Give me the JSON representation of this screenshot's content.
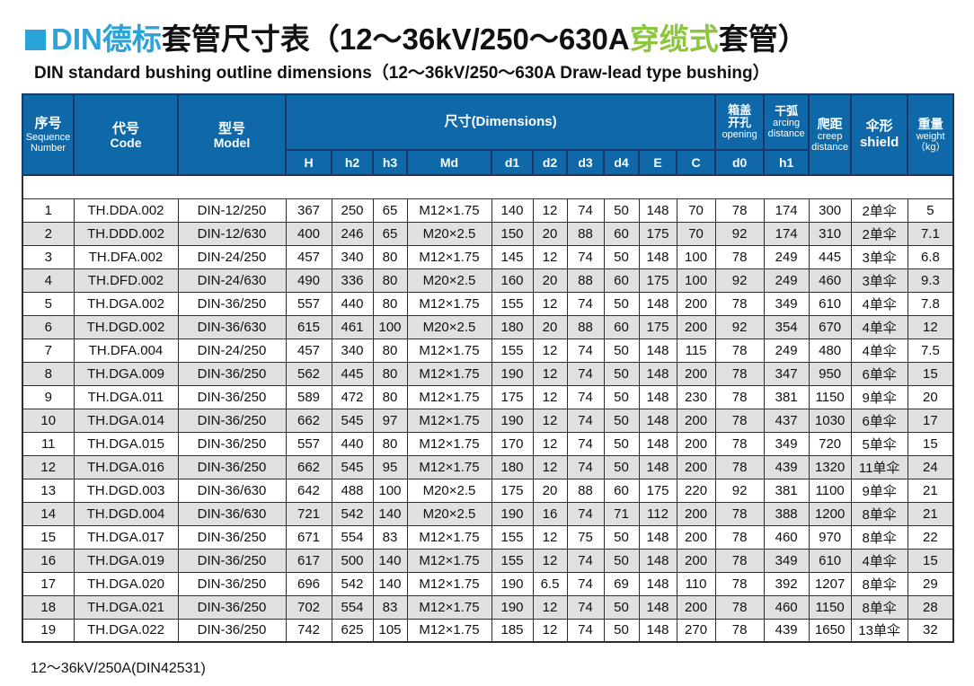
{
  "colors": {
    "header_blue": "#0f69a8",
    "header_navy": "#1b3768",
    "title_blue": "#2aa3d8",
    "title_green": "#8cc63e",
    "row_alt_gray": "#e0e0e0"
  },
  "title": {
    "zh_blue": "DIN德标",
    "zh_black_1": "套管尺寸表（12～36kV/250～630A",
    "zh_green": "穿缆式",
    "zh_black_2": "套管）",
    "en": "DIN standard bushing outline dimensions（12～36kV/250～630A Draw-lead type bushing）"
  },
  "table": {
    "headers": {
      "sequence": {
        "zh": "序号",
        "en": "Sequence\nNumber"
      },
      "code": {
        "zh": "代号",
        "en": "Code"
      },
      "model": {
        "zh": "型号",
        "en": "Model"
      },
      "dimensions": "尺寸(Dimensions)",
      "sub_cols": [
        "H",
        "h2",
        "h3",
        "Md",
        "d1",
        "d2",
        "d3",
        "d4",
        "E",
        "C",
        "d0",
        "h1"
      ],
      "opening": {
        "zh": "箱盖\n开孔",
        "en": "opening"
      },
      "arcing": {
        "zh": "干弧",
        "en": "arcing\ndistance"
      },
      "creep": {
        "zh": "爬距",
        "en": "creep\ndistance"
      },
      "shield": {
        "zh": "伞形\nshield",
        "en": ""
      },
      "weight": {
        "zh": "重量",
        "en": "weight\n（kg）"
      }
    },
    "rows": [
      [
        "1",
        "TH.DDA.002",
        "DIN-12/250",
        "367",
        "250",
        "65",
        "M12×1.75",
        "140",
        "12",
        "74",
        "50",
        "148",
        "70",
        "78",
        "174",
        "300",
        "2单伞",
        "5"
      ],
      [
        "2",
        "TH.DDD.002",
        "DIN-12/630",
        "400",
        "246",
        "65",
        "M20×2.5",
        "150",
        "20",
        "88",
        "60",
        "175",
        "70",
        "92",
        "174",
        "310",
        "2单伞",
        "7.1"
      ],
      [
        "3",
        "TH.DFA.002",
        "DIN-24/250",
        "457",
        "340",
        "80",
        "M12×1.75",
        "145",
        "12",
        "74",
        "50",
        "148",
        "100",
        "78",
        "249",
        "445",
        "3单伞",
        "6.8"
      ],
      [
        "4",
        "TH.DFD.002",
        "DIN-24/630",
        "490",
        "336",
        "80",
        "M20×2.5",
        "160",
        "20",
        "88",
        "60",
        "175",
        "100",
        "92",
        "249",
        "460",
        "3单伞",
        "9.3"
      ],
      [
        "5",
        "TH.DGA.002",
        "DIN-36/250",
        "557",
        "440",
        "80",
        "M12×1.75",
        "155",
        "12",
        "74",
        "50",
        "148",
        "200",
        "78",
        "349",
        "610",
        "4单伞",
        "7.8"
      ],
      [
        "6",
        "TH.DGD.002",
        "DIN-36/630",
        "615",
        "461",
        "100",
        "M20×2.5",
        "180",
        "20",
        "88",
        "60",
        "175",
        "200",
        "92",
        "354",
        "670",
        "4单伞",
        "12"
      ],
      [
        "7",
        "TH.DFA.004",
        "DIN-24/250",
        "457",
        "340",
        "80",
        "M12×1.75",
        "155",
        "12",
        "74",
        "50",
        "148",
        "115",
        "78",
        "249",
        "480",
        "4单伞",
        "7.5"
      ],
      [
        "8",
        "TH.DGA.009",
        "DIN-36/250",
        "562",
        "445",
        "80",
        "M12×1.75",
        "190",
        "12",
        "74",
        "50",
        "148",
        "200",
        "78",
        "347",
        "950",
        "6单伞",
        "15"
      ],
      [
        "9",
        "TH.DGA.011",
        "DIN-36/250",
        "589",
        "472",
        "80",
        "M12×1.75",
        "175",
        "12",
        "74",
        "50",
        "148",
        "230",
        "78",
        "381",
        "1150",
        "9单伞",
        "20"
      ],
      [
        "10",
        "TH.DGA.014",
        "DIN-36/250",
        "662",
        "545",
        "97",
        "M12×1.75",
        "190",
        "12",
        "74",
        "50",
        "148",
        "200",
        "78",
        "437",
        "1030",
        "6单伞",
        "17"
      ],
      [
        "11",
        "TH.DGA.015",
        "DIN-36/250",
        "557",
        "440",
        "80",
        "M12×1.75",
        "170",
        "12",
        "74",
        "50",
        "148",
        "200",
        "78",
        "349",
        "720",
        "5单伞",
        "15"
      ],
      [
        "12",
        "TH.DGA.016",
        "DIN-36/250",
        "662",
        "545",
        "95",
        "M12×1.75",
        "180",
        "12",
        "74",
        "50",
        "148",
        "200",
        "78",
        "439",
        "1320",
        "11单伞",
        "24"
      ],
      [
        "13",
        "TH.DGD.003",
        "DIN-36/630",
        "642",
        "488",
        "100",
        "M20×2.5",
        "175",
        "20",
        "88",
        "60",
        "175",
        "220",
        "92",
        "381",
        "1100",
        "9单伞",
        "21"
      ],
      [
        "14",
        "TH.DGD.004",
        "DIN-36/630",
        "721",
        "542",
        "140",
        "M20×2.5",
        "190",
        "16",
        "74",
        "71",
        "112",
        "200",
        "78",
        "388",
        "1200",
        "8单伞",
        "21"
      ],
      [
        "15",
        "TH.DGA.017",
        "DIN-36/250",
        "671",
        "554",
        "83",
        "M12×1.75",
        "155",
        "12",
        "75",
        "50",
        "148",
        "200",
        "78",
        "460",
        "970",
        "8单伞",
        "22"
      ],
      [
        "16",
        "TH.DGA.019",
        "DIN-36/250",
        "617",
        "500",
        "140",
        "M12×1.75",
        "155",
        "12",
        "74",
        "50",
        "148",
        "200",
        "78",
        "349",
        "610",
        "4单伞",
        "15"
      ],
      [
        "17",
        "TH.DGA.020",
        "DIN-36/250",
        "696",
        "542",
        "140",
        "M12×1.75",
        "190",
        "6.5",
        "74",
        "69",
        "148",
        "110",
        "78",
        "392",
        "1207",
        "8单伞",
        "29"
      ],
      [
        "18",
        "TH.DGA.021",
        "DIN-36/250",
        "702",
        "554",
        "83",
        "M12×1.75",
        "190",
        "12",
        "74",
        "50",
        "148",
        "200",
        "78",
        "460",
        "1150",
        "8单伞",
        "28"
      ],
      [
        "19",
        "TH.DGA.022",
        "DIN-36/250",
        "742",
        "625",
        "105",
        "M12×1.75",
        "185",
        "12",
        "74",
        "50",
        "148",
        "270",
        "78",
        "439",
        "1650",
        "13单伞",
        "32"
      ]
    ]
  },
  "footer": {
    "note": "12～36kV/250A(DIN42531)"
  }
}
